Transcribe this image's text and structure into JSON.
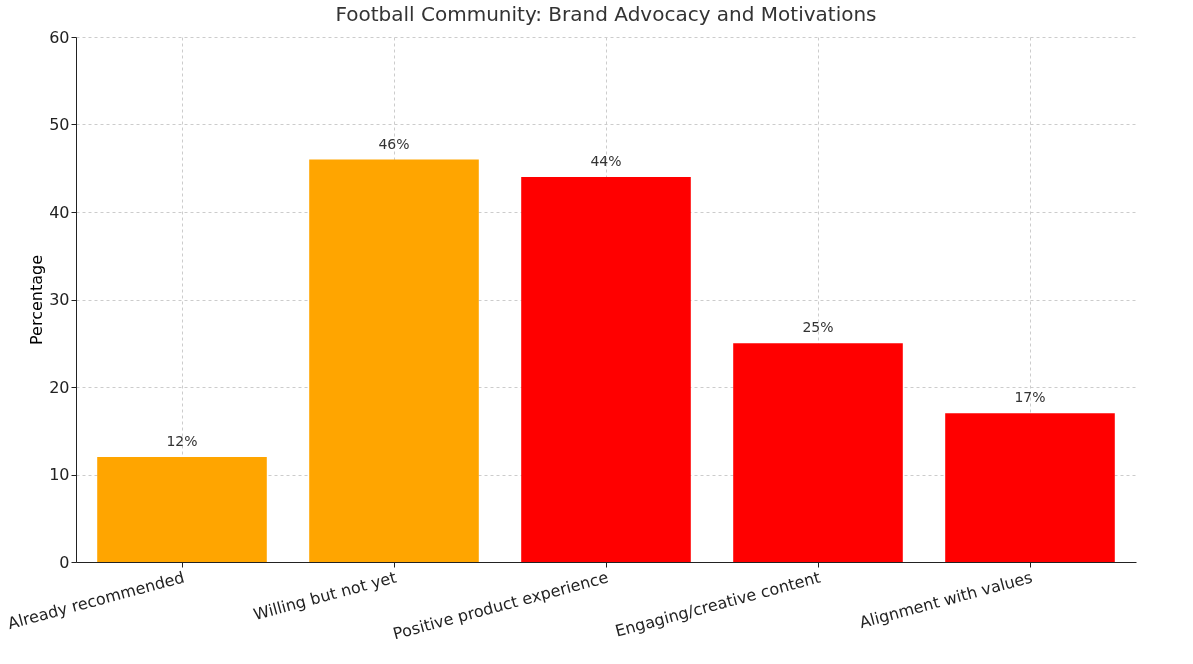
{
  "chart_data": {
    "type": "bar",
    "title": "Football Community: Brand Advocacy and Motivations",
    "ylabel": "Percentage",
    "categories": [
      "Already recommended",
      "Willing but not yet",
      "Positive product experience",
      "Engaging/creative content",
      "Alignment with values"
    ],
    "values": [
      12,
      46,
      44,
      25,
      17
    ],
    "colors": [
      "#ffa500",
      "#ffa500",
      "#ff0000",
      "#ff0000",
      "#ff0000"
    ],
    "value_labels": [
      "12%",
      "46%",
      "44%",
      "25%",
      "17%"
    ],
    "ylim": [
      0,
      60
    ],
    "yticks": [
      0,
      10,
      20,
      30,
      40,
      50,
      60
    ],
    "grid": true
  }
}
